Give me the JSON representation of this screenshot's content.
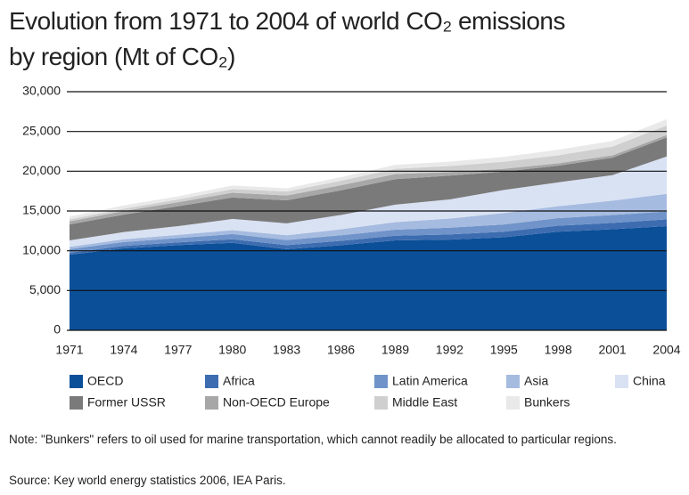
{
  "chart_data": {
    "type": "stacked_area",
    "title": "Evolution from 1971 to 2004 of world CO₂ emissions by region (Mt of CO₂)",
    "x": [
      1971,
      1974,
      1977,
      1980,
      1983,
      1986,
      1989,
      1992,
      1995,
      1998,
      2001,
      2004
    ],
    "xlim": [
      1971,
      2004
    ],
    "xticks": [
      1971,
      1974,
      1977,
      1980,
      1983,
      1986,
      1989,
      1992,
      1995,
      1998,
      2001,
      2004
    ],
    "ylim": [
      0,
      30000
    ],
    "yticks": [
      0,
      {
        "value": 5000,
        "label": "5,000"
      },
      {
        "value": 10000,
        "label": "10,000"
      },
      {
        "value": 15000,
        "label": "15,000"
      },
      {
        "value": 20000,
        "label": "20,000"
      },
      {
        "value": 25000,
        "label": "25,000"
      },
      {
        "value": 30000,
        "label": "30,000"
      }
    ],
    "grid": true,
    "series": [
      {
        "name": "OECD",
        "color": "#0b4f98",
        "values": [
          9500,
          10300,
          10700,
          11000,
          10200,
          10700,
          11300,
          11400,
          11700,
          12400,
          12700,
          13100
        ]
      },
      {
        "name": "Africa",
        "color": "#3d6db0",
        "values": [
          250,
          300,
          350,
          450,
          500,
          550,
          600,
          650,
          700,
          750,
          800,
          850
        ]
      },
      {
        "name": "Latin America",
        "color": "#7094c9",
        "values": [
          450,
          500,
          550,
          650,
          650,
          700,
          750,
          850,
          900,
          950,
          1000,
          1000
        ]
      },
      {
        "name": "Asia",
        "color": "#a6bbe0",
        "values": [
          300,
          350,
          400,
          500,
          600,
          750,
          950,
          1150,
          1450,
          1500,
          1800,
          2200
        ]
      },
      {
        "name": "China",
        "color": "#d9e2f3",
        "values": [
          800,
          900,
          1100,
          1400,
          1500,
          1800,
          2200,
          2400,
          2900,
          3000,
          3200,
          4700
        ]
      },
      {
        "name": "Former USSR",
        "color": "#7a7a7a",
        "values": [
          2000,
          2200,
          2500,
          2700,
          2900,
          3100,
          3200,
          3000,
          2300,
          2100,
          2200,
          2400
        ]
      },
      {
        "name": "Non-OECD Europe",
        "color": "#a7a7a7",
        "values": [
          400,
          450,
          500,
          600,
          600,
          650,
          650,
          450,
          350,
          300,
          300,
          300
        ]
      },
      {
        "name": "Middle East",
        "color": "#cfcfcf",
        "values": [
          250,
          300,
          350,
          450,
          500,
          550,
          650,
          750,
          900,
          1000,
          1100,
          1200
        ]
      },
      {
        "name": "Bunkers",
        "color": "#e9e9e9",
        "values": [
          350,
          400,
          400,
          450,
          400,
          450,
          500,
          550,
          600,
          700,
          700,
          800
        ]
      }
    ],
    "notes": [
      "Note: \"Bunkers\" refers to oil used for marine transportation, which cannot readily be allocated to particular regions.",
      "Source: Key world energy statistics 2006, IEA Paris."
    ]
  }
}
